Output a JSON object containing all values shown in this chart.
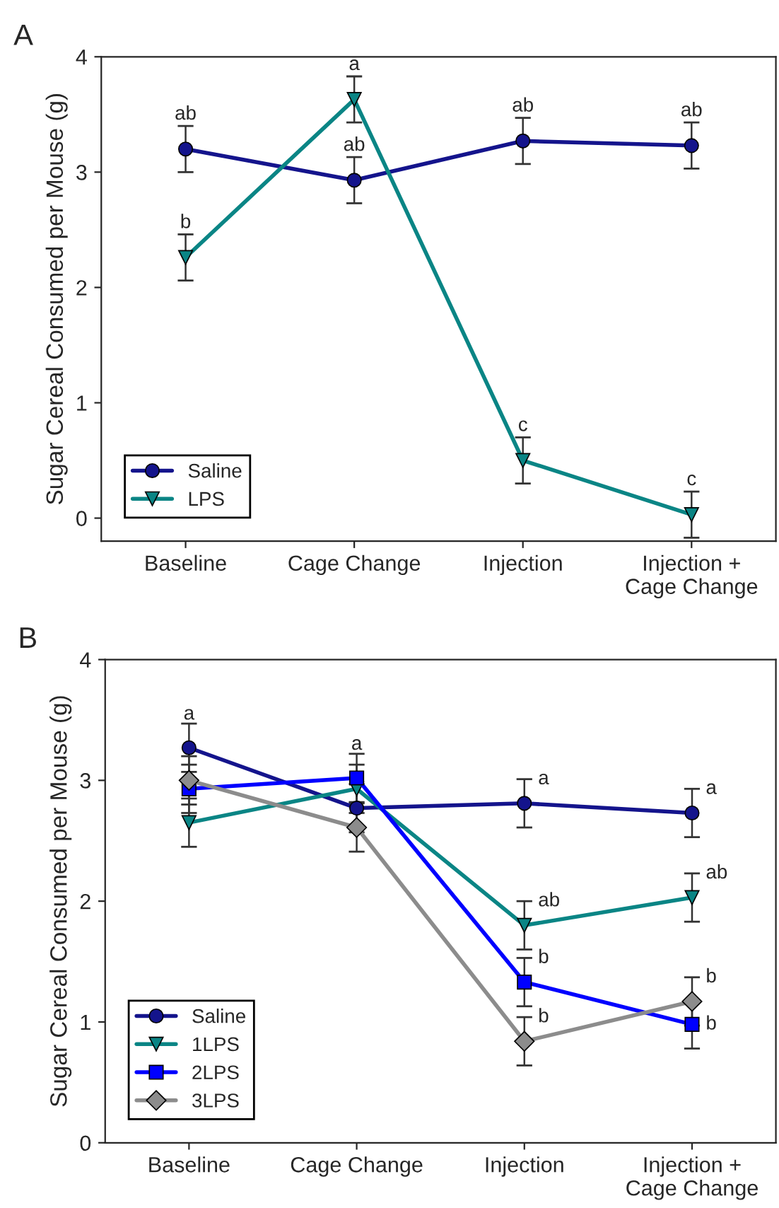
{
  "chart_data": [
    {
      "type": "line",
      "title": "A",
      "ylabel": "Sugar Cereal Consumed per Mouse (g)",
      "categories": [
        "Baseline",
        "Cage Change",
        "Injection",
        "Injection +\nCage Change"
      ],
      "series": [
        {
          "name": "Saline",
          "color": "#14148c",
          "marker": "circle",
          "values": [
            3.2,
            2.93,
            3.27,
            3.23
          ],
          "errors": [
            0.2,
            0.2,
            0.2,
            0.2
          ]
        },
        {
          "name": "LPS",
          "color": "#0a8585",
          "marker": "triangle",
          "values": [
            2.26,
            3.63,
            0.5,
            0.03
          ],
          "errors": [
            0.2,
            0.2,
            0.2,
            0.2
          ]
        }
      ],
      "ylim": [
        -0.2,
        4
      ],
      "yticks": [
        0,
        1,
        2,
        3,
        4
      ],
      "grid": false,
      "legend": "bottom left",
      "annotations": [
        {
          "text": "ab",
          "x": "Baseline",
          "y": 3.42
        },
        {
          "text": "b",
          "x": "Baseline",
          "y": 2.48
        },
        {
          "text": "a",
          "x": "Cage Change",
          "y": 3.85
        },
        {
          "text": "ab",
          "x": "Cage Change",
          "y": 3.15
        },
        {
          "text": "ab",
          "x": "Injection",
          "y": 3.49
        },
        {
          "text": "c",
          "x": "Injection",
          "y": 0.72
        },
        {
          "text": "ab",
          "x": "Injection +\nCage Change",
          "y": 3.45
        },
        {
          "text": "c",
          "x": "Injection +\nCage Change",
          "y": 0.25
        }
      ]
    },
    {
      "type": "line",
      "title": "B",
      "ylabel": "Sugar Cereal Consumed per Mouse (g)",
      "categories": [
        "Baseline",
        "Cage Change",
        "Injection",
        "Injection +\nCage Change"
      ],
      "series": [
        {
          "name": "Saline",
          "color": "#14148c",
          "marker": "circle",
          "values": [
            3.27,
            2.77,
            2.81,
            2.73
          ],
          "errors": [
            0.2,
            0.2,
            0.2,
            0.2
          ]
        },
        {
          "name": "1LPS",
          "color": "#0a8585",
          "marker": "triangle",
          "values": [
            2.65,
            2.93,
            1.8,
            2.03
          ],
          "errors": [
            0.2,
            0.2,
            0.2,
            0.2
          ]
        },
        {
          "name": "2LPS",
          "color": "#0000ff",
          "marker": "square",
          "values": [
            2.93,
            3.02,
            1.33,
            0.98
          ],
          "errors": [
            0.2,
            0.2,
            0.2,
            0.2
          ]
        },
        {
          "name": "3LPS",
          "color": "#8c8c8c",
          "marker": "diamond",
          "values": [
            3.0,
            2.61,
            0.84,
            1.17
          ],
          "errors": [
            0.2,
            0.2,
            0.2,
            0.2
          ]
        }
      ],
      "ylim": [
        0,
        4
      ],
      "yticks": [
        0,
        1,
        2,
        3,
        4
      ],
      "grid": false,
      "legend": "bottom left",
      "annotations": [
        {
          "text": "a",
          "x": "Baseline",
          "y": 3.47
        },
        {
          "text": "a",
          "x": "Cage Change",
          "y": 3.22
        },
        {
          "text": "a",
          "x": "Injection",
          "y": 3.01
        },
        {
          "text": "ab",
          "x": "Injection",
          "y": 2.0
        },
        {
          "text": "b",
          "x": "Injection",
          "y": 1.53
        },
        {
          "text": "b",
          "x": "Injection",
          "y": 1.04
        },
        {
          "text": "a",
          "x": "Injection +\nCage Change",
          "y": 2.93
        },
        {
          "text": "ab",
          "x": "Injection +\nCage Change",
          "y": 2.23
        },
        {
          "text": "b",
          "x": "Injection +\nCage Change",
          "y": 1.37
        },
        {
          "text": "b",
          "x": "Injection +\nCage Change",
          "y": 0.98
        }
      ]
    }
  ]
}
